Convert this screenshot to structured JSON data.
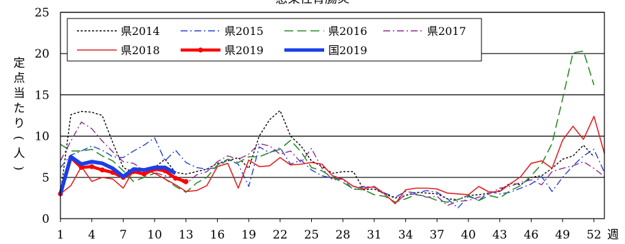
{
  "chart_data": {
    "type": "line",
    "title": "感染性胃腸炎",
    "ylabel": "定点当たり(人)",
    "xlabel": "週",
    "ylim": [
      0,
      25
    ],
    "yticks": [
      0,
      5,
      10,
      15,
      20,
      25
    ],
    "xticks": [
      1,
      4,
      7,
      10,
      13,
      16,
      19,
      22,
      25,
      28,
      31,
      34,
      37,
      40,
      43,
      46,
      49,
      52
    ],
    "grid": "horizontal",
    "legend_position": "top-left",
    "series": [
      {
        "name": "県2014",
        "color": "#000000",
        "style": "dotted",
        "x_start": 1,
        "values": [
          3.0,
          12.6,
          13.0,
          12.9,
          12.5,
          9.2,
          6.2,
          5.6,
          5.8,
          6.2,
          7.2,
          5.6,
          5.4,
          5.7,
          6.0,
          6.7,
          7.0,
          7.4,
          6.1,
          10.0,
          12.0,
          13.1,
          10.0,
          8.8,
          7.0,
          6.3,
          5.5,
          5.7,
          5.7,
          3.5,
          3.6,
          3.0,
          2.5,
          2.8,
          3.2,
          3.1,
          3.0,
          2.4,
          2.3,
          2.8,
          2.9,
          3.1,
          3.4,
          4.3,
          4.1,
          5.0,
          5.2,
          6.1,
          7.2,
          7.6,
          8.9,
          7.5
        ]
      },
      {
        "name": "県2015",
        "color": "#2040d0",
        "style": "dashdot",
        "x_start": 1,
        "values": [
          6.2,
          7.7,
          8.2,
          8.8,
          8.3,
          7.5,
          7.4,
          8.2,
          8.9,
          9.8,
          7.0,
          8.3,
          6.8,
          6.2,
          6.0,
          6.2,
          7.2,
          6.6,
          3.9,
          8.7,
          8.0,
          8.6,
          6.6,
          7.1,
          5.9,
          5.2,
          4.9,
          4.8,
          3.5,
          3.9,
          3.8,
          3.1,
          2.6,
          3.3,
          3.1,
          3.4,
          3.2,
          2.4,
          1.3,
          2.7,
          2.2,
          3.3,
          3.0,
          3.2,
          3.7,
          4.2,
          5.1,
          3.3,
          5.0,
          6.4,
          7.6,
          8.4,
          5.6
        ]
      },
      {
        "name": "県2016",
        "color": "#2a8a2a",
        "style": "dashed",
        "x_start": 1,
        "values": [
          9.0,
          8.2,
          8.2,
          8.4,
          7.6,
          7.0,
          5.8,
          4.5,
          5.0,
          5.5,
          4.8,
          3.9,
          3.2,
          4.3,
          5.0,
          6.5,
          7.2,
          6.8,
          7.5,
          7.5,
          8.0,
          8.4,
          9.5,
          8.1,
          6.2,
          5.8,
          5.0,
          4.4,
          3.6,
          3.5,
          2.9,
          2.7,
          2.0,
          2.4,
          2.9,
          2.7,
          2.2,
          2.0,
          2.3,
          2.8,
          2.2,
          2.8,
          2.5,
          3.4,
          4.0,
          5.2,
          6.6,
          9.1,
          14.5,
          20.1,
          20.3,
          16.2
        ]
      },
      {
        "name": "県2017",
        "color": "#8a2a8a",
        "style": "dashdot",
        "x_start": 1,
        "values": [
          7.0,
          9.4,
          11.7,
          10.9,
          9.4,
          8.1,
          6.9,
          6.7,
          5.8,
          5.6,
          5.2,
          4.9,
          4.2,
          5.3,
          5.7,
          6.9,
          7.6,
          7.2,
          7.8,
          9.1,
          8.8,
          7.8,
          8.2,
          6.8,
          8.5,
          6.1,
          4.7,
          4.8,
          3.9,
          3.8,
          3.8,
          2.9,
          1.9,
          2.9,
          3.0,
          2.6,
          2.7,
          1.6,
          2.1,
          2.2,
          2.6,
          3.0,
          3.7,
          3.9,
          4.4,
          4.7,
          4.1,
          5.7,
          6.1,
          6.4,
          6.9,
          6.1,
          5.1
        ]
      },
      {
        "name": "県2018",
        "color": "#e02020",
        "style": "solid",
        "x_start": 1,
        "values": [
          3.0,
          4.0,
          6.3,
          4.5,
          5.0,
          4.8,
          3.7,
          5.9,
          6.0,
          5.5,
          4.8,
          4.1,
          3.3,
          3.4,
          4.0,
          6.3,
          6.7,
          3.7,
          7.1,
          6.3,
          6.4,
          7.4,
          6.5,
          6.6,
          6.8,
          6.6,
          5.2,
          4.8,
          3.9,
          3.6,
          3.9,
          3.0,
          1.8,
          3.5,
          3.7,
          3.7,
          3.6,
          3.1,
          3.0,
          2.9,
          3.9,
          3.2,
          3.3,
          4.2,
          5.1,
          6.7,
          7.0,
          6.1,
          9.5,
          11.2,
          9.6,
          12.4,
          7.9
        ]
      },
      {
        "name": "県2019",
        "color": "#ff0000",
        "style": "solid-marker",
        "x_start": 1,
        "values": [
          3.0,
          7.4,
          6.2,
          6.3,
          5.9,
          5.6,
          5.0,
          5.7,
          5.4,
          6.0,
          5.8,
          4.9,
          4.5
        ]
      },
      {
        "name": "国2019",
        "color": "#1a3fe8",
        "style": "solid-thick",
        "x_start": 1,
        "values": [
          3.0,
          7.5,
          6.6,
          6.9,
          6.7,
          6.1,
          5.1,
          6.0,
          5.9,
          6.2,
          6.2,
          5.5
        ]
      }
    ]
  }
}
